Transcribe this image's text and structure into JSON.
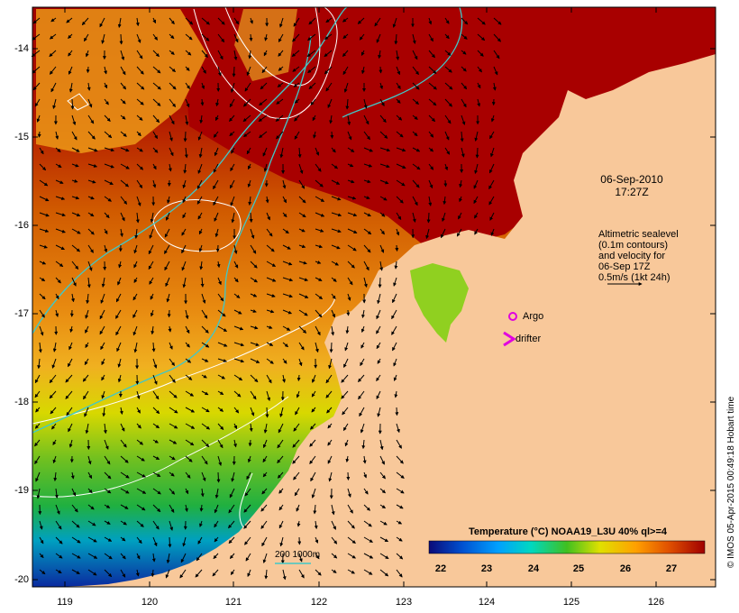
{
  "map": {
    "timestamp_date": "06-Sep-2010",
    "timestamp_time": "17:27Z",
    "altimetry_legend": [
      "Altimetric sealevel",
      "(0.1m contours)",
      "and velocity for",
      "06-Sep 17Z",
      "0.5m/s (1kt 24h)"
    ],
    "argo_label": "Argo",
    "drifter_label": "drifter",
    "depth_contours_label": "200  1000m",
    "latitude_labels": [
      "-14",
      "-15",
      "-16",
      "-17",
      "-18",
      "-19",
      "-20"
    ],
    "longitude_labels": [
      "119",
      "120",
      "121",
      "122",
      "123",
      "124",
      "125",
      "126"
    ],
    "colorbar": {
      "title": "Temperature (°C) NOAA19_L3U 40% ql>=4",
      "ticks": [
        "22",
        "23",
        "24",
        "25",
        "26",
        "27"
      ],
      "colors": [
        "#0a0a78",
        "#0050d0",
        "#00a0ff",
        "#00d8c0",
        "#40c020",
        "#e0e000",
        "#ffa000",
        "#e05000",
        "#a00000"
      ]
    },
    "credit": "© IMOS 05-Apr-2015 00:49:18 Hobart time",
    "colors": {
      "land": "#f8c89a",
      "warm_sea": "#a80000",
      "contour_white": "#ffffff",
      "contour_cyan": "#40c8c8",
      "argo_marker": "#e000e0"
    }
  }
}
